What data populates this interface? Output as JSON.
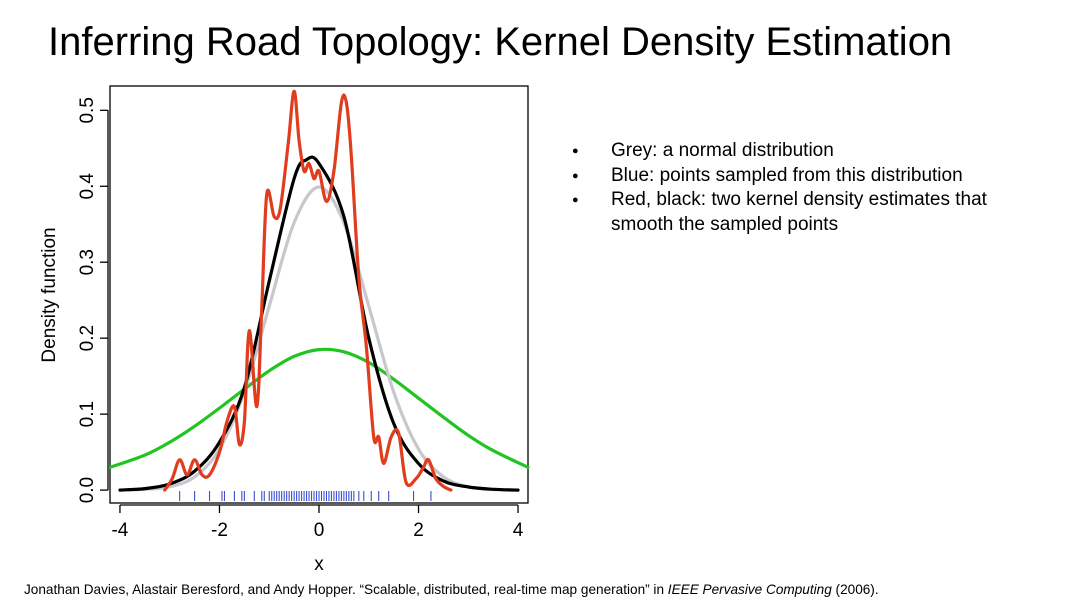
{
  "slide": {
    "title": "Inferring Road Topology: Kernel Density Estimation",
    "bullets": [
      "Grey: a normal distribution",
      "Blue: points sampled from this distribution",
      "Red, black: two kernel density estimates that smooth the sampled points"
    ],
    "citation": {
      "prefix": "Jonathan Davies, Alastair Beresford, and Andy Hopper. “Scalable, distributed, real-time map generation” in ",
      "journal": "IEEE Pervasive Computing",
      "suffix": " (2006)."
    }
  },
  "chart_data": {
    "type": "line",
    "title": "",
    "xlabel": "x",
    "ylabel": "Density function",
    "xlim": [
      -4.2,
      4.2
    ],
    "ylim": [
      -0.017,
      0.532
    ],
    "x_ticks": [
      -4,
      -2,
      0,
      2,
      4
    ],
    "y_ticks": [
      0.0,
      0.1,
      0.2,
      0.3,
      0.4,
      0.5
    ],
    "grid": false,
    "legend": "none",
    "colors": {
      "grey": "#c8c8cc",
      "green": "#22c422",
      "black": "#000000",
      "red": "#e03c1e",
      "blue": "#3b4fd0"
    },
    "series": [
      {
        "color": "#22c422",
        "x": [
          -4.2,
          -3.5,
          -3.0,
          -2.5,
          -2.0,
          -1.5,
          -1.0,
          -0.5,
          0.0,
          0.5,
          1.0,
          1.5,
          2.0,
          2.5,
          3.0,
          3.5,
          4.2
        ],
        "y": [
          0.03,
          0.046,
          0.063,
          0.084,
          0.108,
          0.133,
          0.157,
          0.176,
          0.185,
          0.182,
          0.168,
          0.146,
          0.121,
          0.096,
          0.072,
          0.052,
          0.03
        ]
      },
      {
        "color": "#c8c8cc",
        "x": [
          -4.0,
          -3.5,
          -3.0,
          -2.5,
          -2.0,
          -1.5,
          -1.0,
          -0.5,
          0.0,
          0.5,
          1.0,
          1.5,
          2.0,
          2.5,
          3.0,
          3.5,
          4.0
        ],
        "y": [
          0.0001,
          0.0009,
          0.0044,
          0.0175,
          0.054,
          0.1295,
          0.242,
          0.352,
          0.399,
          0.352,
          0.242,
          0.1295,
          0.054,
          0.0175,
          0.0044,
          0.0009,
          0.0001
        ]
      },
      {
        "color": "#000000",
        "x": [
          -4.0,
          -3.5,
          -3.0,
          -2.5,
          -2.0,
          -1.5,
          -1.0,
          -0.5,
          -0.25,
          0.0,
          0.5,
          1.0,
          1.5,
          2.0,
          2.5,
          3.0,
          3.5,
          4.0
        ],
        "y": [
          0.0,
          0.002,
          0.008,
          0.025,
          0.063,
          0.135,
          0.275,
          0.41,
          0.435,
          0.43,
          0.36,
          0.2,
          0.088,
          0.035,
          0.012,
          0.004,
          0.001,
          0.0
        ]
      },
      {
        "color": "#e03c1e",
        "x": [
          -3.1,
          -2.95,
          -2.8,
          -2.65,
          -2.5,
          -2.35,
          -2.2,
          -2.0,
          -1.85,
          -1.7,
          -1.6,
          -1.5,
          -1.4,
          -1.25,
          -1.15,
          -1.05,
          -0.9,
          -0.78,
          -0.62,
          -0.5,
          -0.4,
          -0.3,
          -0.2,
          -0.1,
          0.0,
          0.15,
          0.3,
          0.45,
          0.55,
          0.65,
          0.8,
          0.95,
          1.1,
          1.2,
          1.3,
          1.45,
          1.6,
          1.75,
          1.95,
          2.1,
          2.2,
          2.35,
          2.5,
          2.65
        ],
        "y": [
          0.0,
          0.015,
          0.04,
          0.02,
          0.04,
          0.02,
          0.02,
          0.05,
          0.09,
          0.11,
          0.06,
          0.09,
          0.21,
          0.11,
          0.24,
          0.39,
          0.36,
          0.37,
          0.455,
          0.525,
          0.46,
          0.42,
          0.43,
          0.41,
          0.42,
          0.38,
          0.42,
          0.51,
          0.51,
          0.44,
          0.28,
          0.19,
          0.07,
          0.07,
          0.035,
          0.07,
          0.075,
          0.01,
          0.015,
          0.03,
          0.04,
          0.015,
          0.005,
          0.0
        ]
      }
    ],
    "rug": {
      "color": "#3b4fd0",
      "x": [
        -2.8,
        -2.5,
        -2.2,
        -1.95,
        -1.9,
        -1.7,
        -1.55,
        -1.5,
        -1.3,
        -1.15,
        -1.1,
        -1.0,
        -0.95,
        -0.9,
        -0.85,
        -0.8,
        -0.75,
        -0.7,
        -0.65,
        -0.6,
        -0.55,
        -0.5,
        -0.45,
        -0.4,
        -0.35,
        -0.3,
        -0.25,
        -0.2,
        -0.15,
        -0.1,
        -0.05,
        0.0,
        0.05,
        0.1,
        0.15,
        0.2,
        0.25,
        0.3,
        0.35,
        0.4,
        0.45,
        0.5,
        0.55,
        0.6,
        0.65,
        0.7,
        0.8,
        0.9,
        1.05,
        1.2,
        1.4,
        1.9,
        2.25
      ]
    }
  }
}
